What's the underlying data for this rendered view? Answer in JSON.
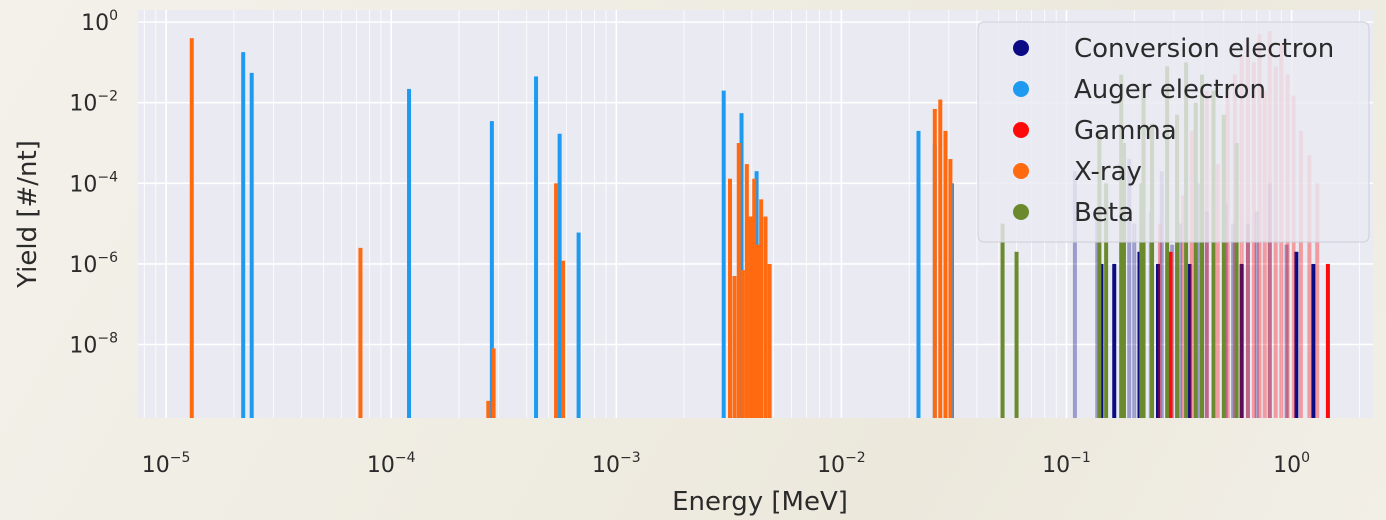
{
  "chart_data": {
    "type": "bar",
    "title": "",
    "xlabel": "Energy [MeV]",
    "ylabel": "Yield [#/nt]",
    "x_scale": "log",
    "y_scale": "log",
    "xlim": [
      7.5e-06,
      2.3
    ],
    "ylim": [
      1.5e-10,
      2.0
    ],
    "grid": true,
    "legend_position": "top-right",
    "x_tick_labels": [
      {
        "value": 1e-05,
        "base": "10",
        "exp": "−5"
      },
      {
        "value": 0.0001,
        "base": "10",
        "exp": "−4"
      },
      {
        "value": 0.001,
        "base": "10",
        "exp": "−3"
      },
      {
        "value": 0.01,
        "base": "10",
        "exp": "−2"
      },
      {
        "value": 0.1,
        "base": "10",
        "exp": "−1"
      },
      {
        "value": 1,
        "base": "10",
        "exp": "0"
      }
    ],
    "y_tick_labels": [
      {
        "value": 1,
        "base": "10",
        "exp": "0"
      },
      {
        "value": 0.01,
        "base": "10",
        "exp": "−2"
      },
      {
        "value": 0.0001,
        "base": "10",
        "exp": "−4"
      },
      {
        "value": 1e-06,
        "base": "10",
        "exp": "−6"
      },
      {
        "value": 1e-08,
        "base": "10",
        "exp": "−8"
      }
    ],
    "series": [
      {
        "name": "Conversion electron",
        "color": "#0b0b86",
        "x": [
          0.109,
          0.137,
          0.143,
          0.163,
          0.19,
          0.2,
          0.211,
          0.237,
          0.255,
          0.265,
          0.295,
          0.32,
          0.352,
          0.385,
          0.42,
          0.51,
          0.55,
          0.6,
          0.64,
          0.7,
          0.8,
          0.95,
          1.05,
          1.25
        ],
        "y": [
          0.0002,
          2e-05,
          1e-06,
          1e-06,
          0.0004,
          1e-05,
          2e-06,
          2e-05,
          1e-06,
          0.0002,
          3e-06,
          1e-05,
          1e-06,
          0.0001,
          2e-05,
          3e-05,
          1e-05,
          1e-06,
          1e-05,
          2e-05,
          0.0001,
          3e-06,
          2e-06,
          1e-06
        ]
      },
      {
        "name": "Auger electron",
        "color": "#1e9bf0",
        "x": [
          2.2e-05,
          2.4e-05,
          0.00012,
          0.00028,
          0.00044,
          0.00056,
          0.00068,
          0.003,
          0.0036,
          0.0042,
          0.022,
          0.026,
          0.031
        ],
        "y": [
          0.18,
          0.055,
          0.022,
          0.0035,
          0.045,
          0.0017,
          6e-06,
          0.02,
          0.0055,
          0.0002,
          0.002,
          0.0009,
          0.0001
        ]
      },
      {
        "name": "Gamma",
        "color": "#ff0a0a",
        "x": [
          0.26,
          0.29,
          0.33,
          0.36,
          0.42,
          0.47,
          0.52,
          0.56,
          0.6,
          0.64,
          0.68,
          0.72,
          0.76,
          0.8,
          0.85,
          0.9,
          0.96,
          1.02,
          1.1,
          1.2,
          1.3,
          1.45
        ],
        "y": [
          1e-05,
          2e-06,
          5e-05,
          0.002,
          0.02,
          0.0003,
          0.03,
          0.05,
          0.15,
          0.4,
          0.1,
          0.5,
          0.02,
          0.6,
          0.08,
          0.3,
          0.05,
          0.015,
          0.002,
          0.0005,
          0.0001,
          1e-06
        ]
      },
      {
        "name": "X-ray",
        "color": "#ff6a10",
        "x": [
          1.3e-05,
          7.3e-05,
          0.00027,
          0.000285,
          0.00054,
          0.00058,
          0.0032,
          0.00335,
          0.0035,
          0.00365,
          0.0038,
          0.00395,
          0.0041,
          0.00425,
          0.0044,
          0.0046,
          0.0048,
          0.026,
          0.0275,
          0.029,
          0.0305
        ],
        "y": [
          0.4,
          2.5e-06,
          4e-10,
          8e-09,
          0.0001,
          1.2e-06,
          0.00013,
          5e-07,
          0.001,
          7e-07,
          0.0003,
          1.5e-05,
          0.00013,
          3e-06,
          4e-05,
          1.5e-05,
          1e-06,
          0.007,
          0.012,
          0.002,
          0.0004
        ]
      },
      {
        "name": "Beta",
        "color": "#6b8a2e",
        "x": [
          0.052,
          0.06,
          0.14,
          0.15,
          0.175,
          0.18,
          0.215,
          0.22,
          0.24,
          0.28,
          0.31,
          0.34,
          0.375,
          0.4,
          0.45,
          0.5,
          0.57
        ],
        "y": [
          1e-05,
          2e-06,
          0.002,
          0.0001,
          0.05,
          0.001,
          0.0001,
          0.03,
          0.003,
          0.08,
          0.005,
          0.1,
          0.01,
          0.05,
          0.02,
          0.005,
          0.001
        ]
      }
    ]
  }
}
